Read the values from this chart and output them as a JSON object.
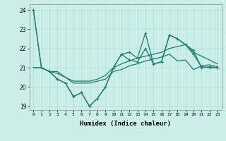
{
  "xlabel": "Humidex (Indice chaleur)",
  "bg_color": "#cceee8",
  "grid_color": "#aadddd",
  "line_color": "#1e7a70",
  "xlim": [
    -0.5,
    23.5
  ],
  "ylim": [
    18.8,
    24.3
  ],
  "yticks": [
    19,
    20,
    21,
    22,
    23,
    24
  ],
  "xticks": [
    0,
    1,
    2,
    3,
    4,
    5,
    6,
    7,
    8,
    9,
    10,
    11,
    12,
    13,
    14,
    15,
    16,
    17,
    18,
    19,
    20,
    21,
    22,
    23
  ],
  "jagged1_y": [
    24.0,
    21.0,
    20.8,
    20.4,
    20.2,
    19.5,
    19.7,
    19.0,
    19.4,
    20.0,
    21.0,
    21.7,
    21.8,
    21.5,
    22.8,
    21.2,
    21.3,
    22.7,
    22.5,
    22.2,
    21.9,
    21.0,
    21.05,
    21.0
  ],
  "jagged2_y": [
    24.0,
    21.0,
    20.8,
    20.4,
    20.2,
    19.5,
    19.7,
    19.0,
    19.4,
    20.0,
    21.0,
    21.7,
    21.4,
    21.3,
    22.0,
    21.2,
    21.3,
    22.7,
    22.5,
    22.2,
    21.7,
    21.05,
    21.0,
    21.0
  ],
  "smooth_upper_y": [
    21.0,
    21.0,
    20.8,
    20.8,
    20.5,
    20.3,
    20.3,
    20.3,
    20.4,
    20.6,
    21.0,
    21.2,
    21.35,
    21.5,
    21.6,
    21.7,
    21.8,
    22.0,
    22.1,
    22.2,
    21.8,
    21.6,
    21.4,
    21.2
  ],
  "smooth_lower_y": [
    21.0,
    21.0,
    20.8,
    20.7,
    20.5,
    20.2,
    20.2,
    20.2,
    20.3,
    20.4,
    20.8,
    20.9,
    21.1,
    21.2,
    21.35,
    21.45,
    21.55,
    21.7,
    21.35,
    21.4,
    20.9,
    21.1,
    21.15,
    21.05
  ]
}
